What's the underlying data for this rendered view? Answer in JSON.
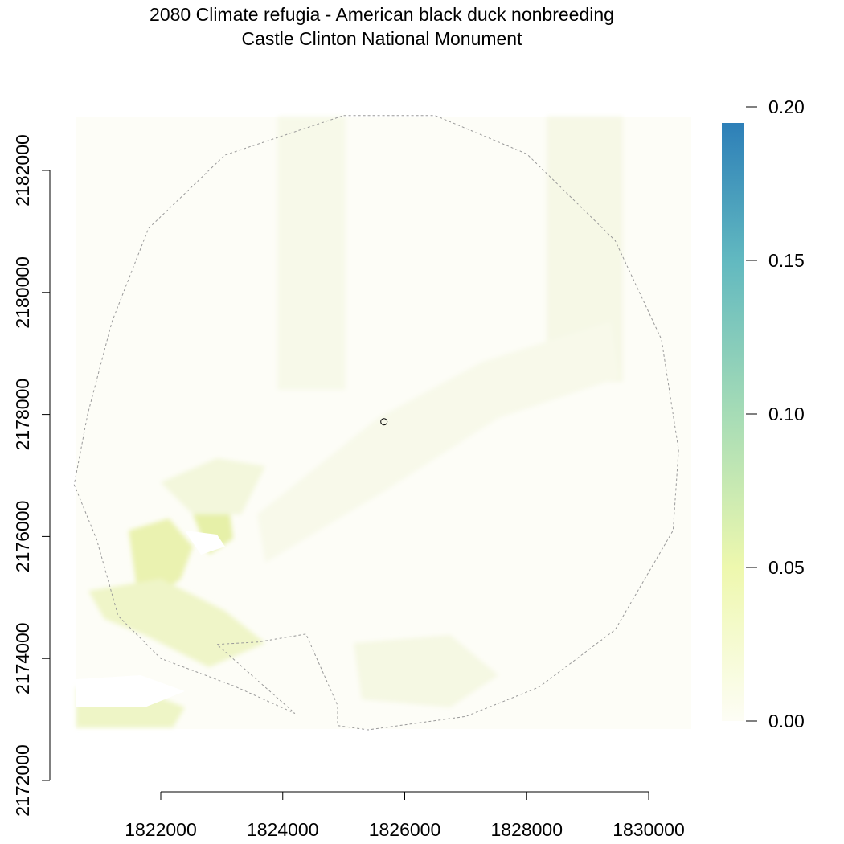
{
  "title": {
    "line1": "2080 Climate refugia - American black duck nonbreeding",
    "line2": "Castle Clinton National Monument"
  },
  "colors": {
    "scale_low": "#fdfdf5",
    "scale_005": "#eef8ae",
    "scale_010": "#a6dcb6",
    "scale_015": "#62b9c0",
    "scale_high": "#2d7fb8",
    "boundary": "#9a9a9a",
    "axis": "#000000"
  },
  "chart_data": {
    "type": "heatmap",
    "xlabel": "",
    "ylabel": "",
    "x_ticks": [
      1822000,
      1824000,
      1826000,
      1828000,
      1830000
    ],
    "y_ticks": [
      2172000,
      2174000,
      2176000,
      2178000,
      2180000,
      2182000
    ],
    "x_tick_labels": [
      "1822000",
      "1824000",
      "1826000",
      "1828000",
      "1830000"
    ],
    "y_tick_labels": [
      "2172000",
      "2174000",
      "2176000",
      "2178000",
      "2180000",
      "2182000"
    ],
    "legend": {
      "position": "right",
      "ticks": [
        0.0,
        0.05,
        0.1,
        0.15,
        0.2
      ],
      "tick_labels": [
        "0.00",
        "0.05",
        "0.10",
        "0.15",
        "0.20"
      ],
      "range": [
        0,
        0.195
      ]
    },
    "site_center": [
      1825660,
      2177880
    ],
    "buffer_boundary": [
      [
        1825000,
        2182900
      ],
      [
        1826500,
        2182900
      ],
      [
        1828000,
        2182270
      ],
      [
        1829450,
        2180850
      ],
      [
        1830210,
        2179230
      ],
      [
        1830490,
        2177420
      ],
      [
        1830400,
        2176100
      ],
      [
        1829450,
        2174470
      ],
      [
        1828200,
        2173530
      ],
      [
        1827000,
        2173050
      ],
      [
        1825400,
        2172830
      ],
      [
        1824900,
        2172900
      ],
      [
        1824900,
        2173230
      ],
      [
        1824380,
        2174400
      ],
      [
        1823600,
        2174270
      ],
      [
        1822920,
        2174230
      ],
      [
        1824200,
        2173100
      ],
      [
        1823200,
        2173550
      ],
      [
        1822000,
        2174000
      ],
      [
        1821300,
        2174700
      ],
      [
        1820950,
        2175950
      ],
      [
        1820580,
        2176850
      ],
      [
        1820800,
        2178000
      ],
      [
        1821200,
        2179520
      ],
      [
        1821800,
        2181050
      ],
      [
        1823050,
        2182250
      ]
    ]
  }
}
